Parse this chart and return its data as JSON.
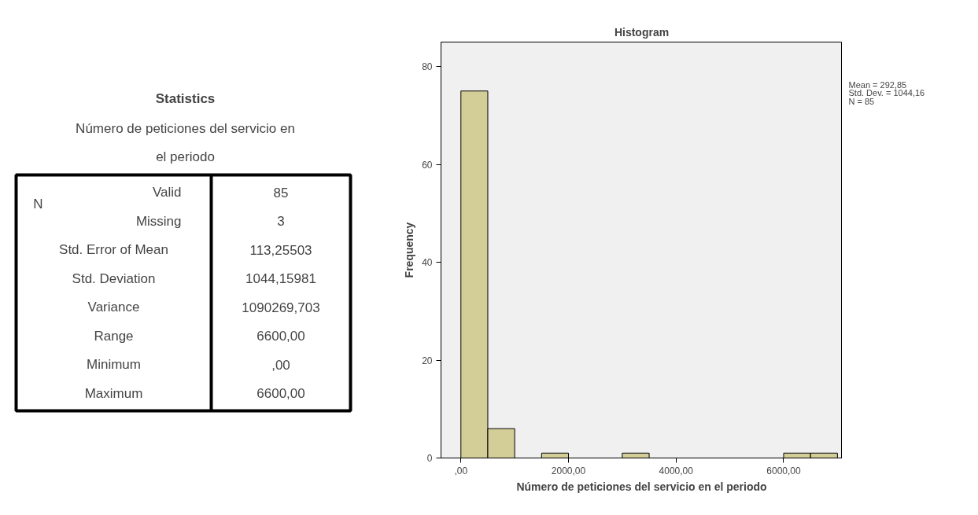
{
  "chart_data": [
    {
      "type": "other",
      "title": "Statistics",
      "subtitle": "Número de peticiones del servicio en el periodo",
      "annotations": [
        "N",
        "Valid",
        "85",
        "Missing",
        "3",
        "Std. Error of Mean",
        "113,25503",
        "Std. Deviation",
        "1044,15981",
        "Variance",
        "1090269,703",
        "Range",
        "6600,00",
        "Minimum",
        ",00",
        "Maximum",
        "6600,00"
      ]
    },
    {
      "type": "histogram",
      "title": "Histogram",
      "xlabel": "Número de peticiones del servicio en el periodo",
      "ylabel": "Frequency",
      "color": "#d3cd98",
      "bins": [
        0,
        500,
        1000,
        1500,
        2000,
        2500,
        3000,
        3500,
        4000,
        4500,
        5000,
        5500,
        6000,
        6500,
        7000
      ],
      "values": [
        75,
        6,
        0,
        1,
        0,
        0,
        1,
        0,
        0,
        0,
        0,
        0,
        1,
        1
      ],
      "xlim": [
        -370,
        7090
      ],
      "ylim": [
        0,
        85
      ],
      "xticks": [
        {
          "value": 0,
          "label": ",00"
        },
        {
          "value": 2000,
          "label": "2000,00"
        },
        {
          "value": 4000,
          "label": "4000,00"
        },
        {
          "value": 6000,
          "label": "6000,00"
        }
      ],
      "yticks": [
        0,
        20,
        40,
        60,
        80
      ],
      "grid": false,
      "annotations": [
        "Mean = 292,85",
        "Std. Dev. = 1044,16",
        "N = 85"
      ]
    }
  ]
}
